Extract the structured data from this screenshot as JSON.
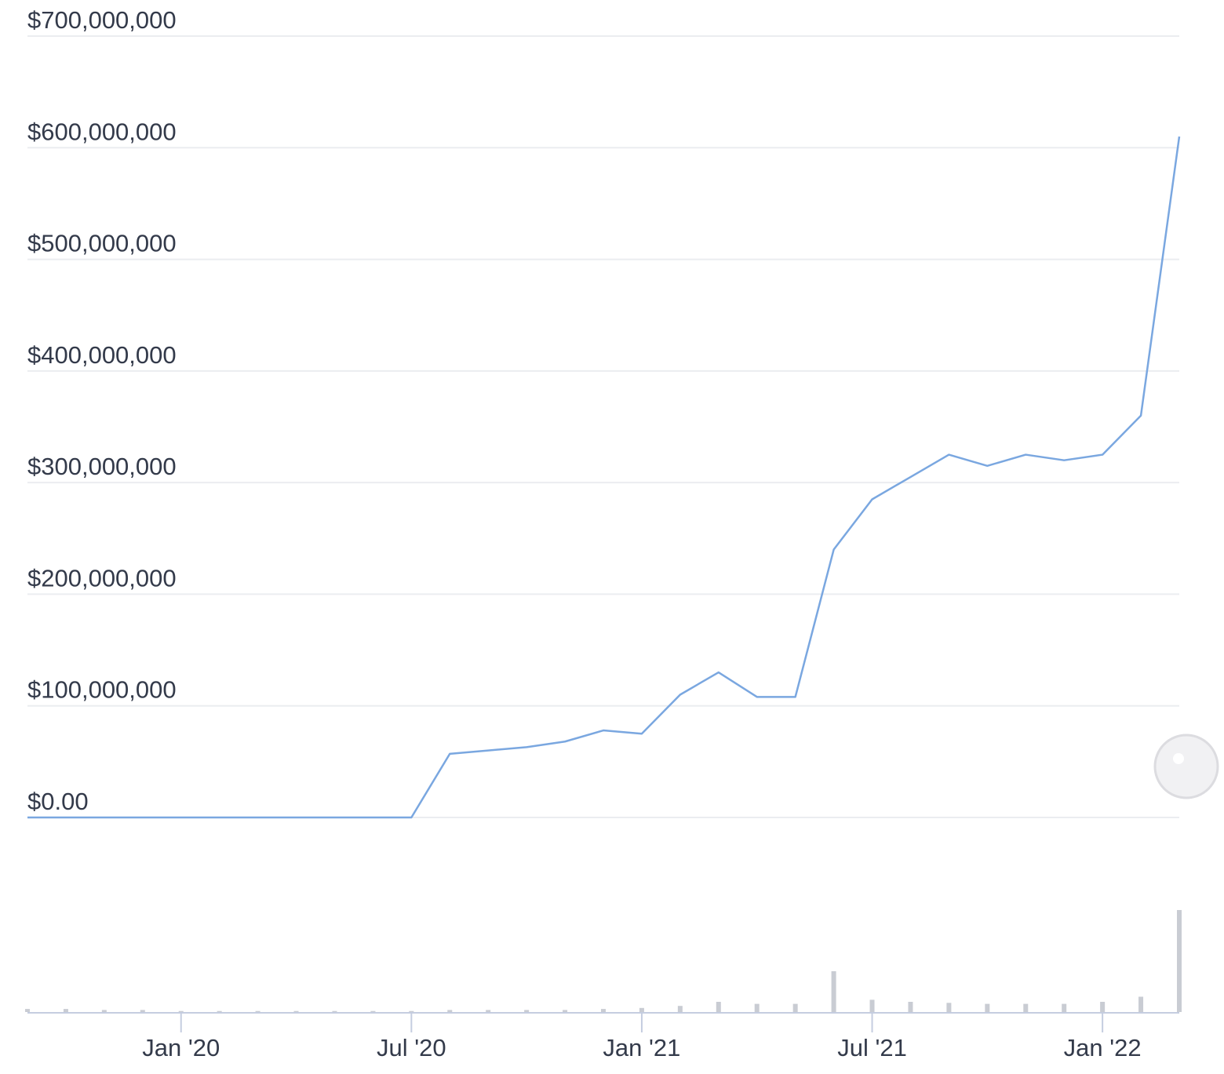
{
  "chart_data": {
    "type": "line",
    "x": [
      "2019-09",
      "2019-10",
      "2019-11",
      "2019-12",
      "2020-01",
      "2020-02",
      "2020-03",
      "2020-04",
      "2020-05",
      "2020-06",
      "2020-07",
      "2020-08",
      "2020-09",
      "2020-10",
      "2020-11",
      "2020-12",
      "2021-01",
      "2021-02",
      "2021-03",
      "2021-04",
      "2021-05",
      "2021-06",
      "2021-07",
      "2021-08",
      "2021-09",
      "2021-10",
      "2021-11",
      "2021-12",
      "2022-01",
      "2022-02",
      "2022-03"
    ],
    "values": [
      0,
      0,
      0,
      0,
      0,
      0,
      0,
      0,
      0,
      0,
      0,
      57000000,
      60000000,
      63000000,
      68000000,
      78000000,
      75000000,
      110000000,
      130000000,
      108000000,
      108000000,
      240000000,
      285000000,
      305000000,
      325000000,
      315000000,
      325000000,
      320000000,
      325000000,
      360000000,
      610000000
    ],
    "color": "#7aa7e0",
    "volume": [
      3,
      3,
      2,
      2,
      1,
      1,
      1,
      1,
      1,
      1,
      1,
      2,
      2,
      2,
      2,
      3,
      4,
      6,
      10,
      8,
      8,
      40,
      12,
      10,
      9,
      8,
      8,
      8,
      10,
      15,
      100
    ],
    "volume_color": "#c9ccd3",
    "volume_lim": [
      0,
      100
    ],
    "xlim": [
      "2019-09",
      "2022-03"
    ],
    "xticks": [
      {
        "value": "2020-01",
        "label": "Jan '20"
      },
      {
        "value": "2020-07",
        "label": "Jul '20"
      },
      {
        "value": "2021-01",
        "label": "Jan '21"
      },
      {
        "value": "2021-07",
        "label": "Jul '21"
      },
      {
        "value": "2022-01",
        "label": "Jan '22"
      }
    ],
    "ylim": [
      0,
      700000000
    ],
    "yticks": [
      {
        "value": 0,
        "label": "$0.00"
      },
      {
        "value": 100000000,
        "label": "$100,000,000"
      },
      {
        "value": 200000000,
        "label": "$200,000,000"
      },
      {
        "value": 300000000,
        "label": "$300,000,000"
      },
      {
        "value": 400000000,
        "label": "$400,000,000"
      },
      {
        "value": 500000000,
        "label": "$500,000,000"
      },
      {
        "value": 600000000,
        "label": "$600,000,000"
      },
      {
        "value": 700000000,
        "label": "$700,000,000"
      }
    ],
    "grid": true
  }
}
